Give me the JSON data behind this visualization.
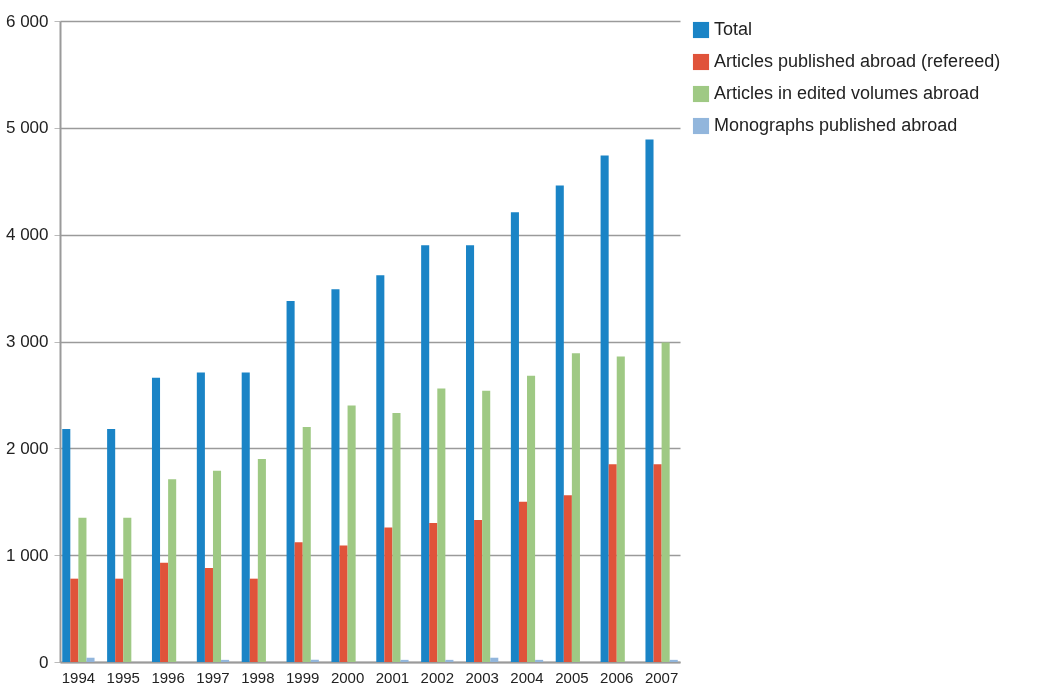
{
  "chart_data": {
    "type": "bar",
    "categories": [
      "1994",
      "1995",
      "1996",
      "1997",
      "1998",
      "1999",
      "2000",
      "2001",
      "2002",
      "2003",
      "2004",
      "2005",
      "2006",
      "2007"
    ],
    "series": [
      {
        "name": "Total",
        "color": "#1a84c6",
        "values": [
          2180,
          2180,
          2660,
          2710,
          2710,
          3380,
          3490,
          3620,
          3900,
          3900,
          4210,
          4460,
          4740,
          4890
        ]
      },
      {
        "name": "Articles published abroad (refereed)",
        "color": "#e0533a",
        "values": [
          780,
          780,
          930,
          880,
          780,
          1120,
          1090,
          1260,
          1300,
          1330,
          1500,
          1560,
          1850,
          1850
        ]
      },
      {
        "name": "Articles in edited volumes abroad",
        "color": "#9fc984",
        "values": [
          1350,
          1350,
          1710,
          1790,
          1900,
          2200,
          2400,
          2330,
          2560,
          2540,
          2680,
          2890,
          2860,
          2990
        ]
      },
      {
        "name": "Monographs published abroad",
        "color": "#92b6dc",
        "values": [
          40,
          0,
          0,
          20,
          0,
          20,
          0,
          20,
          20,
          40,
          20,
          0,
          0,
          20
        ]
      }
    ],
    "ylim": [
      0,
      6000
    ],
    "yticks": [
      {
        "value": 0,
        "label": "0"
      },
      {
        "value": 1000,
        "label": "1 000"
      },
      {
        "value": 2000,
        "label": "2 000"
      },
      {
        "value": 3000,
        "label": "3 000"
      },
      {
        "value": 4000,
        "label": "4 000"
      },
      {
        "value": 5000,
        "label": "5 000"
      },
      {
        "value": 6000,
        "label": "6 000"
      }
    ],
    "grid": "y",
    "legend": "right"
  }
}
